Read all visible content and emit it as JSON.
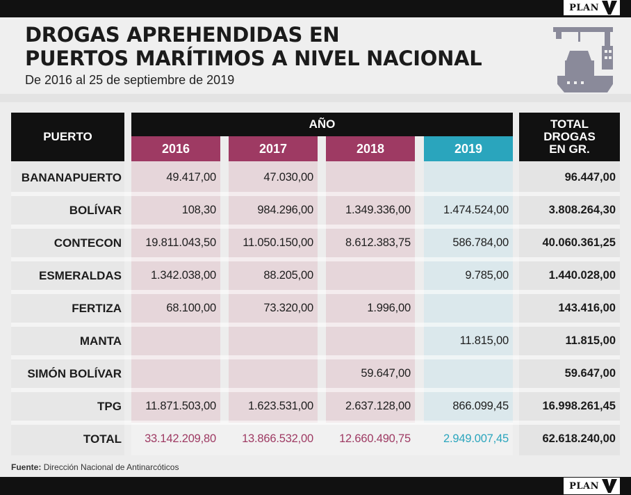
{
  "brand": {
    "name": "PLAN",
    "mark": "V"
  },
  "header": {
    "title_line1": "DROGAS APREHENDIDAS EN",
    "title_line2": "PUERTOS MARÍTIMOS A NIVEL NACIONAL",
    "subtitle": "De 2016 al 25 de septiembre de 2019",
    "icon": "cargo-ship-crane-icon"
  },
  "colors": {
    "years_2016_2018": "#9e3a63",
    "year_2019": "#2aa5bd",
    "header_bg": "#111111",
    "cell_2016_2018": "#e6d6da",
    "cell_2019": "#dbe8ec",
    "total_row_years_text": "#9e3a63",
    "total_row_2019_text": "#2aa5bd"
  },
  "chart_data": {
    "type": "table",
    "headers": {
      "puerto": "PUERTO",
      "anio": "AÑO",
      "total": "TOTAL DROGAS EN GR.",
      "total_lines": [
        "TOTAL",
        "DROGAS",
        "EN GR."
      ],
      "years": [
        "2016",
        "2017",
        "2018",
        "2019"
      ]
    },
    "rows": [
      {
        "puerto": "BANANAPUERTO",
        "values": [
          "49.417,00",
          "47.030,00",
          "",
          ""
        ],
        "total": "96.447,00"
      },
      {
        "puerto": "BOLÍVAR",
        "values": [
          "108,30",
          "984.296,00",
          "1.349.336,00",
          "1.474.524,00"
        ],
        "total": "3.808.264,30"
      },
      {
        "puerto": "CONTECON",
        "values": [
          "19.811.043,50",
          "11.050.150,00",
          "8.612.383,75",
          "586.784,00"
        ],
        "total": "40.060.361,25"
      },
      {
        "puerto": "ESMERALDAS",
        "values": [
          "1.342.038,00",
          "88.205,00",
          "",
          "9.785,00"
        ],
        "total": "1.440.028,00"
      },
      {
        "puerto": "FERTIZA",
        "values": [
          "68.100,00",
          "73.320,00",
          "1.996,00",
          ""
        ],
        "total": "143.416,00"
      },
      {
        "puerto": "MANTA",
        "values": [
          "",
          "",
          "",
          "11.815,00"
        ],
        "total": "11.815,00"
      },
      {
        "puerto": "SIMÓN BOLÍVAR",
        "values": [
          "",
          "",
          "59.647,00",
          ""
        ],
        "total": "59.647,00"
      },
      {
        "puerto": "TPG",
        "values": [
          "11.871.503,00",
          "1.623.531,00",
          "2.637.128,00",
          "866.099,45"
        ],
        "total": "16.998.261,45"
      }
    ],
    "total_row": {
      "label": "TOTAL",
      "values": [
        "33.142.209,80",
        "13.866.532,00",
        "12.660.490,75",
        "2.949.007,45"
      ],
      "total": "62.618.240,00"
    }
  },
  "footer": {
    "source_label": "Fuente:",
    "source_text": "Dirección Nacional de Antinarcóticos"
  }
}
